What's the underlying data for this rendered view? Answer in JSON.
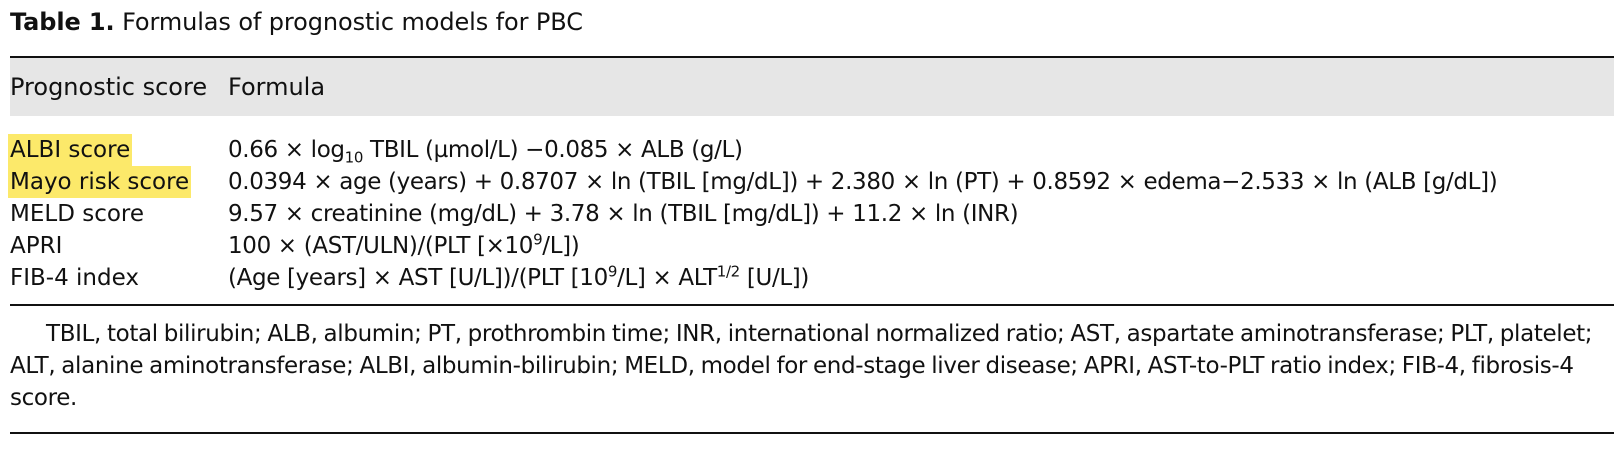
{
  "table": {
    "label": "Table 1.",
    "caption": "Formulas of prognostic models for PBC",
    "headers": {
      "col1": "Prognostic score",
      "col2": "Formula"
    },
    "rows": [
      {
        "name": "ALBI score",
        "highlighted": true,
        "formula_parts": [
          "0.66 × log",
          "10",
          " TBIL (µmol/L) −0.085 × ALB (g/L)"
        ]
      },
      {
        "name": "Mayo risk score",
        "highlighted": true,
        "formula": "0.0394 × age (years) + 0.8707 × ln (TBIL [mg/dL]) + 2.380 × ln (PT) + 0.8592 × edema−2.533 × ln (ALB [g/dL])"
      },
      {
        "name": "MELD score",
        "highlighted": false,
        "formula": "9.57 × creatinine (mg/dL) + 3.78 × ln (TBIL [mg/dL]) + 11.2 × ln (INR)"
      },
      {
        "name": "APRI",
        "highlighted": false,
        "formula_parts": [
          "100 × (AST/ULN)/(PLT [×10",
          "9",
          "/L])"
        ]
      },
      {
        "name": "FIB-4 index",
        "highlighted": false,
        "formula_parts": [
          "(Age [years] × AST [U/L])/(PLT [10",
          "9",
          "/L] × ALT",
          "1/2",
          " [U/L])"
        ]
      }
    ],
    "footnote": "TBIL, total bilirubin; ALB, albumin; PT, prothrombin time; INR, international normalized ratio; AST, aspartate aminotransferase; PLT, platelet; ALT, alanine aminotransferase; ALBI, albumin-bilirubin; MELD, model for end-stage liver disease; APRI, AST-to-PLT ratio index; FIB-4, fibrosis-4 score."
  },
  "colors": {
    "highlight": "#fce96a",
    "header_band": "#e6e6e6",
    "rule": "#111111"
  }
}
